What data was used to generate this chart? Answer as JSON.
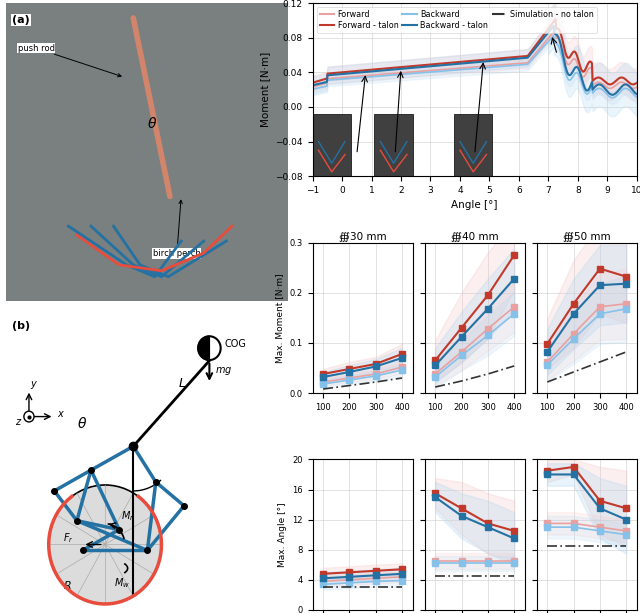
{
  "weight_axis": [
    100,
    200,
    300,
    400
  ],
  "diameters": [
    "∰30 mm",
    "∰40 mm",
    "∰50 mm"
  ],
  "max_moment": {
    "ylim": [
      0,
      0.3
    ],
    "yticks": [
      0,
      0.1,
      0.2,
      0.3
    ],
    "ylabel": "Max. Moment [N·m]",
    "d30": {
      "forward_talon": [
        0.038,
        0.048,
        0.058,
        0.078
      ],
      "forward_talon_upper": [
        0.048,
        0.062,
        0.072,
        0.098
      ],
      "forward_talon_lower": [
        0.028,
        0.034,
        0.044,
        0.058
      ],
      "backward_talon": [
        0.032,
        0.042,
        0.053,
        0.07
      ],
      "backward_talon_upper": [
        0.042,
        0.056,
        0.068,
        0.09
      ],
      "backward_talon_lower": [
        0.022,
        0.028,
        0.038,
        0.05
      ],
      "forward": [
        0.022,
        0.03,
        0.038,
        0.052
      ],
      "forward_upper": [
        0.03,
        0.038,
        0.048,
        0.065
      ],
      "forward_lower": [
        0.014,
        0.022,
        0.028,
        0.039
      ],
      "backward": [
        0.018,
        0.026,
        0.034,
        0.046
      ],
      "backward_upper": [
        0.026,
        0.034,
        0.044,
        0.058
      ],
      "backward_lower": [
        0.01,
        0.018,
        0.024,
        0.034
      ],
      "sim": [
        0.008,
        0.015,
        0.022,
        0.03
      ]
    },
    "d40": {
      "forward_talon": [
        0.065,
        0.13,
        0.195,
        0.275
      ],
      "forward_talon_upper": [
        0.105,
        0.2,
        0.28,
        0.345
      ],
      "forward_talon_lower": [
        0.025,
        0.06,
        0.11,
        0.205
      ],
      "backward_talon": [
        0.055,
        0.112,
        0.168,
        0.228
      ],
      "backward_talon_upper": [
        0.09,
        0.162,
        0.228,
        0.288
      ],
      "backward_talon_lower": [
        0.02,
        0.062,
        0.108,
        0.168
      ],
      "forward": [
        0.038,
        0.082,
        0.128,
        0.172
      ],
      "forward_upper": [
        0.062,
        0.118,
        0.172,
        0.222
      ],
      "forward_lower": [
        0.014,
        0.046,
        0.084,
        0.122
      ],
      "backward": [
        0.032,
        0.075,
        0.115,
        0.158
      ],
      "backward_upper": [
        0.055,
        0.105,
        0.155,
        0.202
      ],
      "backward_lower": [
        0.009,
        0.045,
        0.075,
        0.114
      ],
      "sim": [
        0.012,
        0.024,
        0.038,
        0.054
      ]
    },
    "d50": {
      "forward_talon": [
        0.098,
        0.178,
        0.248,
        0.232
      ],
      "forward_talon_upper": [
        0.148,
        0.265,
        0.338,
        0.325
      ],
      "forward_talon_lower": [
        0.048,
        0.091,
        0.158,
        0.139
      ],
      "backward_talon": [
        0.082,
        0.158,
        0.215,
        0.218
      ],
      "backward_talon_upper": [
        0.128,
        0.228,
        0.295,
        0.295
      ],
      "backward_talon_lower": [
        0.036,
        0.088,
        0.135,
        0.141
      ],
      "forward": [
        0.062,
        0.118,
        0.172,
        0.178
      ],
      "forward_upper": [
        0.098,
        0.172,
        0.238,
        0.248
      ],
      "forward_lower": [
        0.026,
        0.064,
        0.106,
        0.108
      ],
      "backward": [
        0.056,
        0.108,
        0.158,
        0.168
      ],
      "backward_upper": [
        0.09,
        0.158,
        0.218,
        0.234
      ],
      "backward_lower": [
        0.022,
        0.058,
        0.098,
        0.102
      ],
      "sim": [
        0.022,
        0.042,
        0.062,
        0.082
      ]
    }
  },
  "max_angle": {
    "ylim": [
      0,
      20
    ],
    "yticks": [
      0,
      4,
      8,
      12,
      16,
      20
    ],
    "ylabel": "Max. Angle [°]",
    "d30": {
      "forward_talon": [
        4.8,
        5.0,
        5.2,
        5.4
      ],
      "forward_talon_upper": [
        5.6,
        5.8,
        6.0,
        6.2
      ],
      "forward_talon_lower": [
        4.0,
        4.2,
        4.4,
        4.6
      ],
      "backward_talon": [
        4.2,
        4.4,
        4.6,
        4.8
      ],
      "backward_talon_upper": [
        5.0,
        5.2,
        5.4,
        5.6
      ],
      "backward_talon_lower": [
        3.4,
        3.6,
        3.8,
        4.0
      ],
      "forward": [
        3.8,
        4.0,
        4.2,
        4.4
      ],
      "forward_upper": [
        4.5,
        4.7,
        4.9,
        5.1
      ],
      "forward_lower": [
        3.1,
        3.3,
        3.5,
        3.7
      ],
      "backward": [
        3.4,
        3.6,
        3.8,
        3.9
      ],
      "backward_upper": [
        4.1,
        4.3,
        4.5,
        4.7
      ],
      "backward_lower": [
        2.7,
        2.9,
        3.1,
        3.1
      ],
      "sim": [
        3.0,
        3.0,
        3.0,
        3.0
      ]
    },
    "d40": {
      "forward_talon": [
        15.5,
        13.5,
        11.5,
        10.5
      ],
      "forward_talon_upper": [
        17.5,
        17.0,
        15.5,
        14.5
      ],
      "forward_talon_lower": [
        13.5,
        10.0,
        7.5,
        6.5
      ],
      "backward_talon": [
        15.0,
        12.5,
        11.0,
        9.5
      ],
      "backward_talon_upper": [
        17.0,
        15.5,
        14.5,
        13.0
      ],
      "backward_talon_lower": [
        13.0,
        9.5,
        7.5,
        6.0
      ],
      "forward": [
        6.5,
        6.5,
        6.5,
        6.5
      ],
      "forward_upper": [
        7.5,
        7.5,
        7.5,
        7.5
      ],
      "forward_lower": [
        5.5,
        5.5,
        5.5,
        5.5
      ],
      "backward": [
        6.2,
        6.2,
        6.2,
        6.2
      ],
      "backward_upper": [
        7.2,
        7.2,
        7.2,
        7.2
      ],
      "backward_lower": [
        5.2,
        5.2,
        5.2,
        5.2
      ],
      "sim": [
        4.5,
        4.5,
        4.5,
        4.5
      ]
    },
    "d50": {
      "forward_talon": [
        18.5,
        19.0,
        14.5,
        13.5
      ],
      "forward_talon_upper": [
        20.0,
        20.0,
        19.0,
        18.5
      ],
      "forward_talon_lower": [
        17.0,
        18.0,
        10.0,
        8.5
      ],
      "backward_talon": [
        18.0,
        18.0,
        13.5,
        12.0
      ],
      "backward_talon_upper": [
        19.5,
        19.5,
        17.5,
        16.5
      ],
      "backward_talon_lower": [
        16.5,
        16.5,
        9.5,
        7.5
      ],
      "forward": [
        11.5,
        11.5,
        11.0,
        10.5
      ],
      "forward_upper": [
        13.0,
        13.0,
        12.5,
        12.0
      ],
      "forward_lower": [
        10.0,
        10.0,
        9.5,
        9.0
      ],
      "backward": [
        11.0,
        11.0,
        10.5,
        10.0
      ],
      "backward_upper": [
        12.5,
        12.5,
        12.0,
        11.5
      ],
      "backward_lower": [
        9.5,
        9.5,
        9.0,
        8.5
      ],
      "sim": [
        8.5,
        8.5,
        8.5,
        8.5
      ]
    }
  },
  "colors": {
    "forward_talon": "#C0392B",
    "backward_talon": "#2471A3",
    "forward": "#E8A0A0",
    "backward": "#85C1E9",
    "sim": "#333333",
    "forward_fill": "#F5C6C6",
    "backward_fill": "#AED6F1"
  }
}
